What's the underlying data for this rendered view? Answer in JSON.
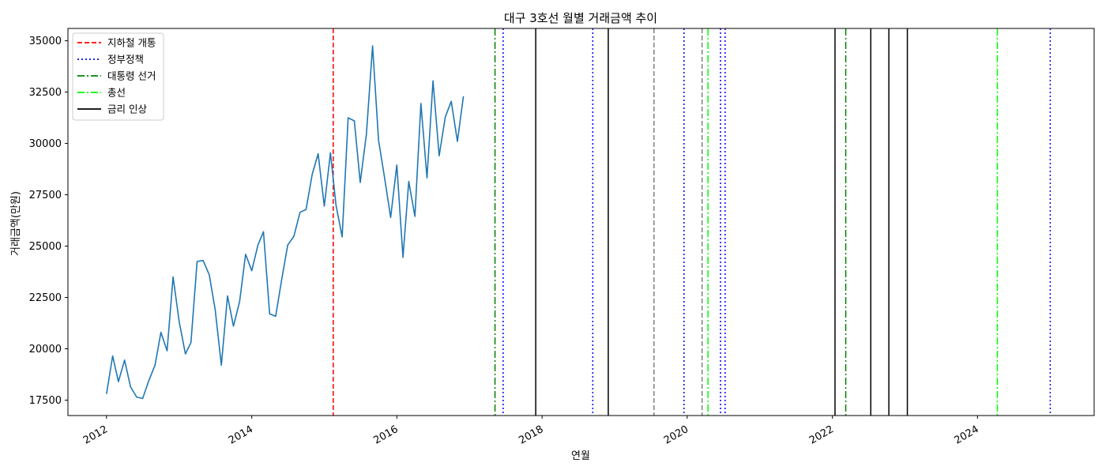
{
  "chart_data": {
    "type": "line",
    "title": "대구 3호선 월별 거래금액 추이",
    "xlabel": "연월",
    "ylabel": "거래금액(만원)",
    "xlim": [
      "2011-06-21",
      "2025-08-10"
    ],
    "ylim": [
      16750,
      35600
    ],
    "x_ticks": [
      "2012",
      "2014",
      "2016",
      "2018",
      "2020",
      "2022",
      "2024"
    ],
    "y_ticks": [
      17500,
      20000,
      22500,
      25000,
      27500,
      30000,
      32500,
      35000
    ],
    "grid": false,
    "legend_position": "top-left",
    "legend": [
      {
        "label": "지하철 개통",
        "style": "dashed",
        "color": "#ff0000"
      },
      {
        "label": "정부정책",
        "style": "dotted",
        "color": "#0000ff"
      },
      {
        "label": "대통령 선거",
        "style": "dashdot",
        "color": "#008000"
      },
      {
        "label": "총선",
        "style": "dashdot",
        "color": "#00ff00"
      },
      {
        "label": "금리 인상",
        "style": "solid",
        "color": "#000000"
      }
    ],
    "series": [
      {
        "color": "#1f77b4",
        "x": [
          "2012-01",
          "2012-02",
          "2012-03",
          "2012-04",
          "2012-05",
          "2012-06",
          "2012-07",
          "2012-08",
          "2012-09",
          "2012-10",
          "2012-11",
          "2012-12",
          "2013-01",
          "2013-02",
          "2013-03",
          "2013-04",
          "2013-05",
          "2013-06",
          "2013-07",
          "2013-08",
          "2013-09",
          "2013-10",
          "2013-11",
          "2013-12",
          "2014-01",
          "2014-02",
          "2014-03",
          "2014-04",
          "2014-05",
          "2014-06",
          "2014-07",
          "2014-08",
          "2014-09",
          "2014-10",
          "2014-11",
          "2014-12",
          "2015-01",
          "2015-02",
          "2015-03",
          "2015-04",
          "2015-05",
          "2015-06",
          "2015-07",
          "2015-08",
          "2015-09",
          "2015-10",
          "2015-11",
          "2015-12",
          "2016-01",
          "2016-02",
          "2016-03",
          "2016-04",
          "2016-05",
          "2016-06",
          "2016-07",
          "2016-08",
          "2016-09",
          "2016-10",
          "2016-11",
          "2016-12"
        ],
        "values": [
          17800,
          19650,
          18400,
          19450,
          18150,
          17650,
          17580,
          18450,
          19200,
          20800,
          19900,
          23500,
          21300,
          19750,
          20300,
          24250,
          24300,
          23600,
          21900,
          19200,
          22580,
          21100,
          22300,
          24600,
          23800,
          25050,
          25700,
          21700,
          21580,
          23400,
          25050,
          25480,
          26650,
          26780,
          28500,
          29500,
          26950,
          29550,
          27000,
          25450,
          31250,
          31100,
          28100,
          30450,
          34750,
          30150,
          28280,
          26400,
          28950,
          24450,
          28150,
          26450,
          31950,
          28320,
          33050,
          29400,
          31300,
          32050,
          30100,
          32300
        ]
      }
    ],
    "events": [
      {
        "event": "지하철 개통",
        "date": "2015-02-15",
        "color": "#ff0000",
        "style": "dashed"
      },
      {
        "event": "대통령 선거",
        "date": "2017-05-09",
        "color": "#008000",
        "style": "dashdot"
      },
      {
        "event": "정부정책",
        "date": "2017-06-19",
        "color": "#0000ff",
        "style": "dotted"
      },
      {
        "event": "금리 인상",
        "date": "2017-11-30",
        "color": "#000000",
        "style": "solid"
      },
      {
        "event": "정부정책",
        "date": "2018-09-13",
        "color": "#0000ff",
        "style": "dotted"
      },
      {
        "event": "금리 인상",
        "date": "2018-11-30",
        "color": "#000000",
        "style": "solid"
      },
      {
        "event": "",
        "date": "2019-07-18",
        "color": "#808080",
        "style": "dashed"
      },
      {
        "event": "정부정책",
        "date": "2019-12-16",
        "color": "#0000ff",
        "style": "dotted"
      },
      {
        "event": "",
        "date": "2020-03-16",
        "color": "#808080",
        "style": "dashed"
      },
      {
        "event": "총선",
        "date": "2020-04-15",
        "color": "#00ff00",
        "style": "dashdot"
      },
      {
        "event": "정부정책",
        "date": "2020-06-17",
        "color": "#0000ff",
        "style": "dotted"
      },
      {
        "event": "정부정책",
        "date": "2020-07-10",
        "color": "#0000ff",
        "style": "dotted"
      },
      {
        "event": "금리 인상",
        "date": "2022-01-14",
        "color": "#000000",
        "style": "solid"
      },
      {
        "event": "대통령 선거",
        "date": "2022-03-09",
        "color": "#008000",
        "style": "dashdot"
      },
      {
        "event": "금리 인상",
        "date": "2022-07-13",
        "color": "#000000",
        "style": "solid"
      },
      {
        "event": "금리 인상",
        "date": "2022-10-12",
        "color": "#000000",
        "style": "solid"
      },
      {
        "event": "금리 인상",
        "date": "2023-01-13",
        "color": "#000000",
        "style": "solid"
      },
      {
        "event": "총선",
        "date": "2024-04-10",
        "color": "#00ff00",
        "style": "dashdot"
      },
      {
        "event": "정부정책",
        "date": "2025-01-01",
        "color": "#0000ff",
        "style": "dotted"
      }
    ]
  }
}
